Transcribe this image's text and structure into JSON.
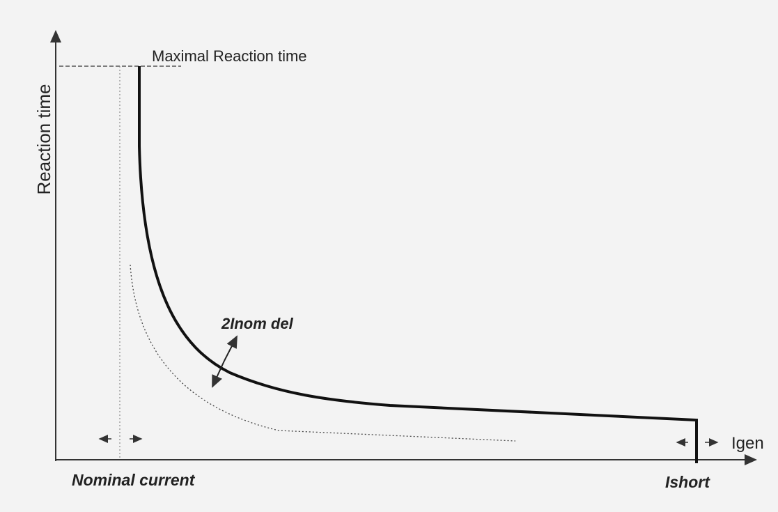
{
  "axes": {
    "y_label": "Reaction time",
    "x_label": "Igen"
  },
  "labels": {
    "max_time": "Maximal Reaction time",
    "setting": "2Inom del",
    "nominal": "Nominal current",
    "short": "Ishort"
  }
}
